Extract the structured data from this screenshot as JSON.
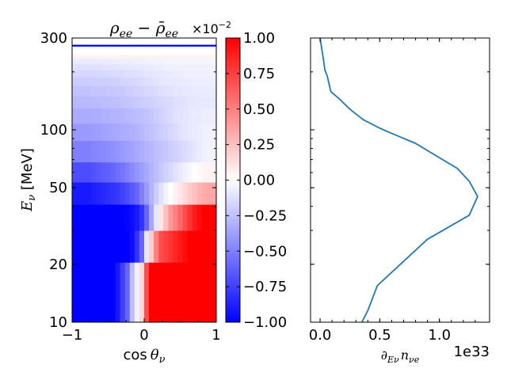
{
  "chart_data": [
    {
      "type": "heatmap",
      "title": "ρee − ρ̄ee",
      "title_parts": {
        "rho": "ρ",
        "sub": "ee",
        "minus": " − ",
        "rhobar": "ρ̄",
        "sub2": "ee"
      },
      "offset_text": "×10−2",
      "offset_parts": {
        "times": "×10",
        "exp": "−2"
      },
      "xlabel": "cos θν",
      "xlabel_parts": {
        "cos": "cos",
        "theta": "θ",
        "sub": "ν"
      },
      "ylabel": "Eν [MeV]",
      "ylabel_parts": {
        "E": "E",
        "sub": "ν",
        "unit": " [MeV]"
      },
      "xlim": [
        -1,
        1
      ],
      "ylim": [
        10,
        300
      ],
      "yscale": "log",
      "xticks": [
        {
          "v": -1,
          "label": "−1"
        },
        {
          "v": 0,
          "label": "0"
        },
        {
          "v": 1,
          "label": "1"
        }
      ],
      "yticks": [
        {
          "v": 10,
          "label": "10"
        },
        {
          "v": 20,
          "label": "20"
        },
        {
          "v": 50,
          "label": "50"
        },
        {
          "v": 100,
          "label": "100"
        },
        {
          "v": 300,
          "label": "300"
        }
      ],
      "colormap": "bwr",
      "colors": {
        "low": "#0000ff",
        "mid": "#ffffff",
        "high": "#ff0000"
      },
      "bins": [
        {
          "e_lo": 10,
          "e_hi": 20.5,
          "values": [
            -1,
            -1,
            -1,
            -1,
            -1,
            -1,
            -1,
            -1,
            -1,
            -0.9,
            -0.75,
            -0.6,
            -0.25,
            -0.05,
            0.15,
            0.7,
            1,
            1,
            1,
            1,
            1,
            1,
            1,
            1,
            1,
            1,
            1,
            1,
            1,
            1
          ]
        },
        {
          "e_lo": 20.5,
          "e_hi": 30.0,
          "values": [
            -1,
            -1,
            -1,
            -1,
            -1,
            -1,
            -1,
            -1,
            -1,
            -1,
            -1,
            -1,
            -0.95,
            -0.8,
            -0.6,
            -0.1,
            0.2,
            0.5,
            0.7,
            0.75,
            0.8,
            0.85,
            0.9,
            0.95,
            1,
            1,
            1,
            1,
            1,
            1
          ]
        },
        {
          "e_lo": 30.0,
          "e_hi": 41.0,
          "values": [
            -1,
            -1,
            -1,
            -1,
            -1,
            -1,
            -1,
            -1,
            -1,
            -1,
            -1,
            -0.98,
            -0.95,
            -0.9,
            -0.8,
            -0.6,
            -0.35,
            -0.1,
            0.1,
            0.25,
            0.4,
            0.5,
            0.6,
            0.7,
            0.8,
            0.9,
            0.95,
            1,
            1,
            1
          ]
        },
        {
          "e_lo": 41.0,
          "e_hi": 53.5,
          "values": [
            -0.9,
            -0.9,
            -0.9,
            -0.9,
            -0.88,
            -0.86,
            -0.84,
            -0.82,
            -0.8,
            -0.78,
            -0.74,
            -0.7,
            -0.65,
            -0.6,
            -0.5,
            -0.4,
            -0.3,
            -0.2,
            -0.12,
            -0.05,
            0,
            0.05,
            0.1,
            0.15,
            0.2,
            0.25,
            0.3,
            0.33,
            0.35,
            0.35
          ]
        },
        {
          "e_lo": 53.5,
          "e_hi": 68.0,
          "values": [
            -0.7,
            -0.7,
            -0.7,
            -0.7,
            -0.68,
            -0.66,
            -0.64,
            -0.62,
            -0.6,
            -0.57,
            -0.54,
            -0.5,
            -0.46,
            -0.42,
            -0.38,
            -0.34,
            -0.3,
            -0.26,
            -0.22,
            -0.18,
            -0.15,
            -0.12,
            -0.09,
            -0.06,
            -0.03,
            0,
            0.02,
            0.04,
            0.05,
            0.05
          ]
        },
        {
          "e_lo": 68.0,
          "e_hi": 88.0,
          "values": [
            -0.5,
            -0.5,
            -0.5,
            -0.5,
            -0.48,
            -0.47,
            -0.46,
            -0.45,
            -0.44,
            -0.42,
            -0.4,
            -0.38,
            -0.36,
            -0.34,
            -0.32,
            -0.3,
            -0.28,
            -0.26,
            -0.24,
            -0.22,
            -0.2,
            -0.18,
            -0.16,
            -0.14,
            -0.12,
            -0.1,
            -0.08,
            -0.06,
            -0.05,
            -0.05
          ]
        },
        {
          "e_lo": 88.0,
          "e_hi": 108.0,
          "values": [
            -0.4,
            -0.4,
            -0.4,
            -0.4,
            -0.39,
            -0.38,
            -0.37,
            -0.36,
            -0.35,
            -0.34,
            -0.33,
            -0.32,
            -0.31,
            -0.3,
            -0.28,
            -0.26,
            -0.24,
            -0.22,
            -0.2,
            -0.18,
            -0.16,
            -0.14,
            -0.12,
            -0.1,
            -0.09,
            -0.08,
            -0.07,
            -0.06,
            -0.06,
            -0.06
          ]
        },
        {
          "e_lo": 108.0,
          "e_hi": 130.0,
          "values": [
            -0.33,
            -0.33,
            -0.33,
            -0.33,
            -0.32,
            -0.32,
            -0.31,
            -0.31,
            -0.3,
            -0.3,
            -0.29,
            -0.28,
            -0.27,
            -0.26,
            -0.25,
            -0.24,
            -0.22,
            -0.2,
            -0.18,
            -0.16,
            -0.14,
            -0.12,
            -0.11,
            -0.1,
            -0.09,
            -0.08,
            -0.08,
            -0.07,
            -0.07,
            -0.07
          ]
        },
        {
          "e_lo": 130.0,
          "e_hi": 150.0,
          "values": [
            -0.28,
            -0.28,
            -0.28,
            -0.28,
            -0.27,
            -0.27,
            -0.26,
            -0.26,
            -0.25,
            -0.25,
            -0.24,
            -0.23,
            -0.22,
            -0.21,
            -0.2,
            -0.19,
            -0.18,
            -0.17,
            -0.16,
            -0.15,
            -0.14,
            -0.13,
            -0.12,
            -0.11,
            -0.1,
            -0.1,
            -0.09,
            -0.09,
            -0.09,
            -0.09
          ]
        },
        {
          "e_lo": 150.0,
          "e_hi": 170.0,
          "values": [
            -0.24,
            -0.24,
            -0.24,
            -0.24,
            -0.23,
            -0.23,
            -0.23,
            -0.22,
            -0.22,
            -0.21,
            -0.21,
            -0.2,
            -0.19,
            -0.18,
            -0.17,
            -0.16,
            -0.15,
            -0.14,
            -0.13,
            -0.12,
            -0.11,
            -0.1,
            -0.1,
            -0.09,
            -0.09,
            -0.08,
            -0.08,
            -0.08,
            -0.08,
            -0.08
          ]
        },
        {
          "e_lo": 170.0,
          "e_hi": 188.0,
          "values": [
            -0.2,
            -0.2,
            -0.2,
            -0.2,
            -0.2,
            -0.19,
            -0.19,
            -0.19,
            -0.18,
            -0.18,
            -0.17,
            -0.17,
            -0.16,
            -0.15,
            -0.14,
            -0.13,
            -0.12,
            -0.11,
            -0.1,
            -0.1,
            -0.09,
            -0.09,
            -0.08,
            -0.08,
            -0.07,
            -0.07,
            -0.07,
            -0.07,
            -0.07,
            -0.07
          ]
        },
        {
          "e_lo": 188.0,
          "e_hi": 205.0,
          "values": [
            -0.16,
            -0.16,
            -0.16,
            -0.16,
            -0.16,
            -0.15,
            -0.15,
            -0.15,
            -0.14,
            -0.14,
            -0.14,
            -0.13,
            -0.13,
            -0.12,
            -0.11,
            -0.1,
            -0.1,
            -0.09,
            -0.09,
            -0.08,
            -0.08,
            -0.07,
            -0.07,
            -0.06,
            -0.06,
            -0.06,
            -0.06,
            -0.06,
            -0.06,
            -0.06
          ]
        },
        {
          "e_lo": 205.0,
          "e_hi": 220.0,
          "values": [
            -0.12,
            -0.12,
            -0.12,
            -0.12,
            -0.12,
            -0.12,
            -0.11,
            -0.11,
            -0.11,
            -0.11,
            -0.1,
            -0.1,
            -0.1,
            -0.09,
            -0.09,
            -0.08,
            -0.08,
            -0.07,
            -0.07,
            -0.06,
            -0.06,
            -0.05,
            -0.05,
            -0.05,
            -0.05,
            -0.05,
            -0.05,
            -0.05,
            -0.05,
            -0.05
          ]
        },
        {
          "e_lo": 220.0,
          "e_hi": 235.0,
          "values": [
            -0.08,
            -0.08,
            -0.08,
            -0.08,
            -0.08,
            -0.08,
            -0.08,
            -0.08,
            -0.07,
            -0.07,
            -0.07,
            -0.07,
            -0.07,
            -0.06,
            -0.06,
            -0.06,
            -0.05,
            -0.05,
            -0.05,
            -0.04,
            -0.04,
            -0.04,
            -0.04,
            -0.04,
            -0.04,
            -0.04,
            -0.04,
            -0.04,
            -0.04,
            -0.04
          ]
        },
        {
          "e_lo": 235.0,
          "e_hi": 246.0,
          "values": [
            0.05,
            0.05,
            0.05,
            0.05,
            0.05,
            0.05,
            0.05,
            0.05,
            0.05,
            0.05,
            0.05,
            0.05,
            0.05,
            0.05,
            0.05,
            0.05,
            0.05,
            0.05,
            0.05,
            0.05,
            0.05,
            0.05,
            0.05,
            0.05,
            0.05,
            0.05,
            0.05,
            0.05,
            0.05,
            0.05
          ]
        },
        {
          "e_lo": 246.0,
          "e_hi": 272.0,
          "values": [
            0,
            0,
            0,
            0,
            0,
            0,
            0,
            0,
            0,
            0,
            0,
            0,
            0,
            0,
            0,
            0,
            0,
            0,
            0,
            0,
            0,
            0,
            0,
            0,
            0,
            0,
            0,
            0,
            0,
            0
          ]
        },
        {
          "e_lo": 272.0,
          "e_hi": 278.0,
          "values": [
            -1,
            -1,
            -1,
            -1,
            -1,
            -1,
            -1,
            -1,
            -1,
            -1,
            -1,
            -1,
            -1,
            -1,
            -1,
            -1,
            -1,
            -1,
            -1,
            -1,
            -1,
            -1,
            -1,
            -1,
            -1,
            -1,
            -1,
            -1,
            -1,
            -1
          ]
        },
        {
          "e_lo": 278.0,
          "e_hi": 300.0,
          "values": [
            0,
            0,
            0,
            0,
            0,
            0,
            0,
            0,
            0,
            0,
            0,
            0,
            0,
            0,
            0,
            0,
            0,
            0,
            0,
            0,
            0,
            0,
            0,
            0,
            0,
            0,
            0,
            0,
            0,
            0
          ]
        }
      ],
      "colorbar": {
        "vmin": -1.0,
        "vmax": 1.0,
        "ticks": [
          {
            "v": 1.0,
            "label": "1.00"
          },
          {
            "v": 0.75,
            "label": "0.75"
          },
          {
            "v": 0.5,
            "label": "0.50"
          },
          {
            "v": 0.25,
            "label": "0.25"
          },
          {
            "v": 0.0,
            "label": "0.00"
          },
          {
            "v": -0.25,
            "label": "−0.25"
          },
          {
            "v": -0.5,
            "label": "−0.50"
          },
          {
            "v": -0.75,
            "label": "−0.75"
          },
          {
            "v": -1.0,
            "label": "−1.00"
          }
        ]
      }
    },
    {
      "type": "line",
      "xlabel": "∂Eν nνe",
      "xlabel_parts": {
        "d": "∂",
        "sub": "Eν",
        "n": "n",
        "sub2": "νe"
      },
      "offset_text": "1e33",
      "xlim": [
        -0.08,
        1.42
      ],
      "ylim": [
        10,
        300
      ],
      "yscale": "log",
      "shares_y_with": "heatmap",
      "xticks": [
        {
          "v": 0,
          "label": "0.0"
        },
        {
          "v": 0.5,
          "label": "0.5"
        },
        {
          "v": 1.0,
          "label": "1.0"
        }
      ],
      "color": "#1f77b4",
      "series": [
        {
          "x": [
            0.35,
            0.4,
            0.48,
            0.9,
            1.25,
            1.32,
            1.25,
            1.15,
            0.8,
            0.58,
            0.5,
            0.36,
            0.25,
            0.16,
            0.09,
            0.06,
            0.04,
            0.03,
            0.02,
            0.0
          ],
          "y": [
            10,
            11.5,
            15.5,
            27,
            36,
            45,
            54,
            63,
            85,
            97,
            102,
            113,
            128,
            145,
            158,
            190,
            205,
            228,
            250,
            300
          ]
        }
      ]
    }
  ]
}
